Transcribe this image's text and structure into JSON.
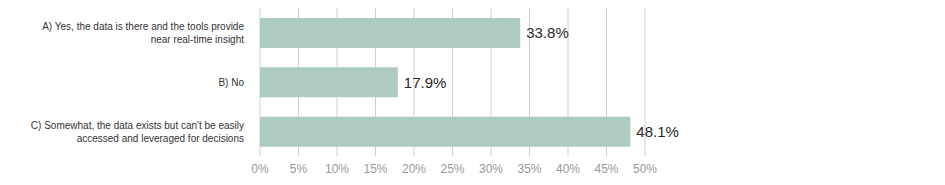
{
  "chart_data": {
    "type": "bar",
    "orientation": "horizontal",
    "categories": [
      "A) Yes, the data is there and the tools provide near real-time insight",
      "B) No",
      "C) Somewhat, the data exists but can't be easily accessed and leveraged for decisions"
    ],
    "values": [
      33.8,
      17.9,
      48.1
    ],
    "value_labels": [
      "33.8%",
      "17.9%",
      "48.1%"
    ],
    "color": "#aecbc2",
    "xlim": [
      0,
      50
    ],
    "xticks": [
      {
        "value": 0,
        "label": "0%"
      },
      {
        "value": 5,
        "label": "5%"
      },
      {
        "value": 10,
        "label": "10%"
      },
      {
        "value": 15,
        "label": "15%"
      },
      {
        "value": 20,
        "label": "20%"
      },
      {
        "value": 25,
        "label": "25%"
      },
      {
        "value": 30,
        "label": "30%"
      },
      {
        "value": 35,
        "label": "35%"
      },
      {
        "value": 40,
        "label": "40%"
      },
      {
        "value": 45,
        "label": "45%"
      },
      {
        "value": 50,
        "label": "50%"
      }
    ],
    "grid": true,
    "data_labels": true
  }
}
